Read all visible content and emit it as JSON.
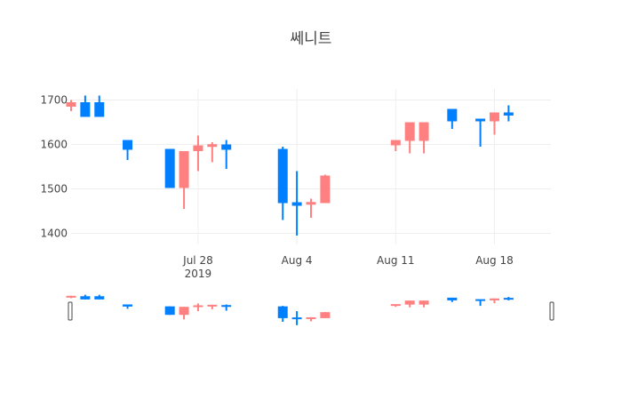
{
  "chart_data": {
    "type": "candlestick",
    "title": "쎄니트",
    "xlabel": "",
    "ylabel": "",
    "ylim": [
      1375,
      1725
    ],
    "x_range": [
      "2019-07-19",
      "2019-08-22"
    ],
    "y_ticks": [
      1400,
      1500,
      1600,
      1700
    ],
    "y_tick_labels": [
      "1400",
      "1500",
      "1600",
      "1700"
    ],
    "x_ticks": [
      {
        "date": "2019-07-28",
        "label": "Jul 28",
        "sublabel": "2019"
      },
      {
        "date": "2019-08-04",
        "label": "Aug 4",
        "sublabel": ""
      },
      {
        "date": "2019-08-11",
        "label": "Aug 11",
        "sublabel": ""
      },
      {
        "date": "2019-08-18",
        "label": "Aug 18",
        "sublabel": ""
      }
    ],
    "grid": true,
    "legend": false,
    "rangeslider": true,
    "colors": {
      "increasing": "#ff8080",
      "decreasing": "#0080ff"
    },
    "candles": [
      {
        "date": "2019-07-19",
        "open": 1685,
        "high": 1700,
        "low": 1675,
        "close": 1695
      },
      {
        "date": "2019-07-20",
        "open": 1695,
        "high": 1710,
        "low": 1662,
        "close": 1662
      },
      {
        "date": "2019-07-21",
        "open": 1695,
        "high": 1710,
        "low": 1662,
        "close": 1662
      },
      {
        "date": "2019-07-23",
        "open": 1610,
        "high": 1610,
        "low": 1565,
        "close": 1588
      },
      {
        "date": "2019-07-26",
        "open": 1590,
        "high": 1590,
        "low": 1502,
        "close": 1502
      },
      {
        "date": "2019-07-27",
        "open": 1502,
        "high": 1585,
        "low": 1455,
        "close": 1585
      },
      {
        "date": "2019-07-28",
        "open": 1585,
        "high": 1620,
        "low": 1540,
        "close": 1598
      },
      {
        "date": "2019-07-29",
        "open": 1595,
        "high": 1605,
        "low": 1560,
        "close": 1600
      },
      {
        "date": "2019-07-30",
        "open": 1600,
        "high": 1610,
        "low": 1545,
        "close": 1588
      },
      {
        "date": "2019-08-03",
        "open": 1590,
        "high": 1595,
        "low": 1430,
        "close": 1468
      },
      {
        "date": "2019-08-04",
        "open": 1470,
        "high": 1540,
        "low": 1395,
        "close": 1462
      },
      {
        "date": "2019-08-05",
        "open": 1465,
        "high": 1478,
        "low": 1435,
        "close": 1470
      },
      {
        "date": "2019-08-06",
        "open": 1468,
        "high": 1532,
        "low": 1468,
        "close": 1530
      },
      {
        "date": "2019-08-11",
        "open": 1598,
        "high": 1610,
        "low": 1585,
        "close": 1610
      },
      {
        "date": "2019-08-12",
        "open": 1608,
        "high": 1650,
        "low": 1580,
        "close": 1650
      },
      {
        "date": "2019-08-13",
        "open": 1608,
        "high": 1650,
        "low": 1580,
        "close": 1650
      },
      {
        "date": "2019-08-15",
        "open": 1680,
        "high": 1680,
        "low": 1635,
        "close": 1652
      },
      {
        "date": "2019-08-17",
        "open": 1657,
        "high": 1658,
        "low": 1595,
        "close": 1653
      },
      {
        "date": "2019-08-18",
        "open": 1652,
        "high": 1672,
        "low": 1622,
        "close": 1672
      },
      {
        "date": "2019-08-19",
        "open": 1672,
        "high": 1688,
        "low": 1652,
        "close": 1665
      }
    ]
  }
}
